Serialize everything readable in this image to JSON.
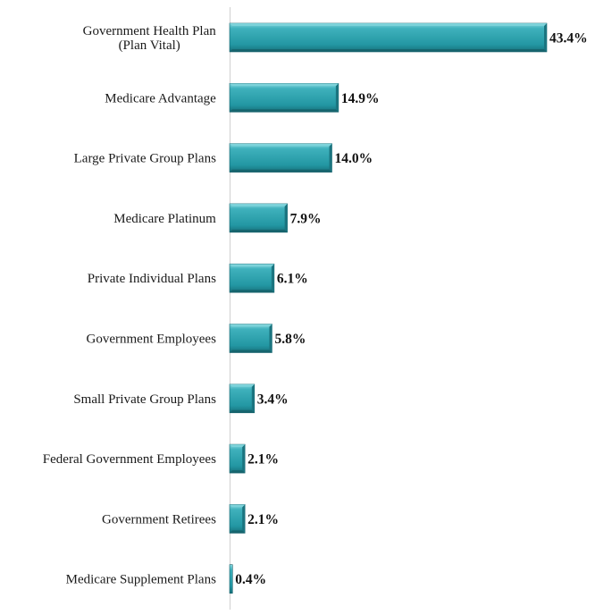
{
  "chart_data": {
    "type": "bar",
    "orientation": "horizontal",
    "title": "",
    "xlabel": "",
    "ylabel": "",
    "categories": [
      [
        "Government Health Plan",
        "(Plan Vital)"
      ],
      [
        "Medicare Advantage"
      ],
      [
        "Large Private Group Plans"
      ],
      [
        "Medicare Platinum"
      ],
      [
        "Private Individual Plans"
      ],
      [
        "Government Employees"
      ],
      [
        "Small Private Group Plans"
      ],
      [
        "Federal Government Employees"
      ],
      [
        "Government Retirees"
      ],
      [
        "Medicare Supplement Plans"
      ]
    ],
    "values": [
      43.4,
      14.9,
      14.0,
      7.9,
      6.1,
      5.8,
      3.4,
      2.1,
      2.1,
      0.4
    ],
    "value_labels": [
      "43.4%",
      "14.9%",
      "14.0%",
      "7.9%",
      "6.1%",
      "5.8%",
      "3.4%",
      "2.1%",
      "2.1%",
      "0.4%"
    ],
    "xlim": [
      0,
      46
    ],
    "grid": false,
    "legend": "none",
    "colors": {
      "bar_fill": "#2aa1ad",
      "bar_top": "#7fd3db",
      "bar_side": "#1b7580",
      "bar_bottom": "#156069",
      "axis": "#d0d0d0"
    }
  }
}
